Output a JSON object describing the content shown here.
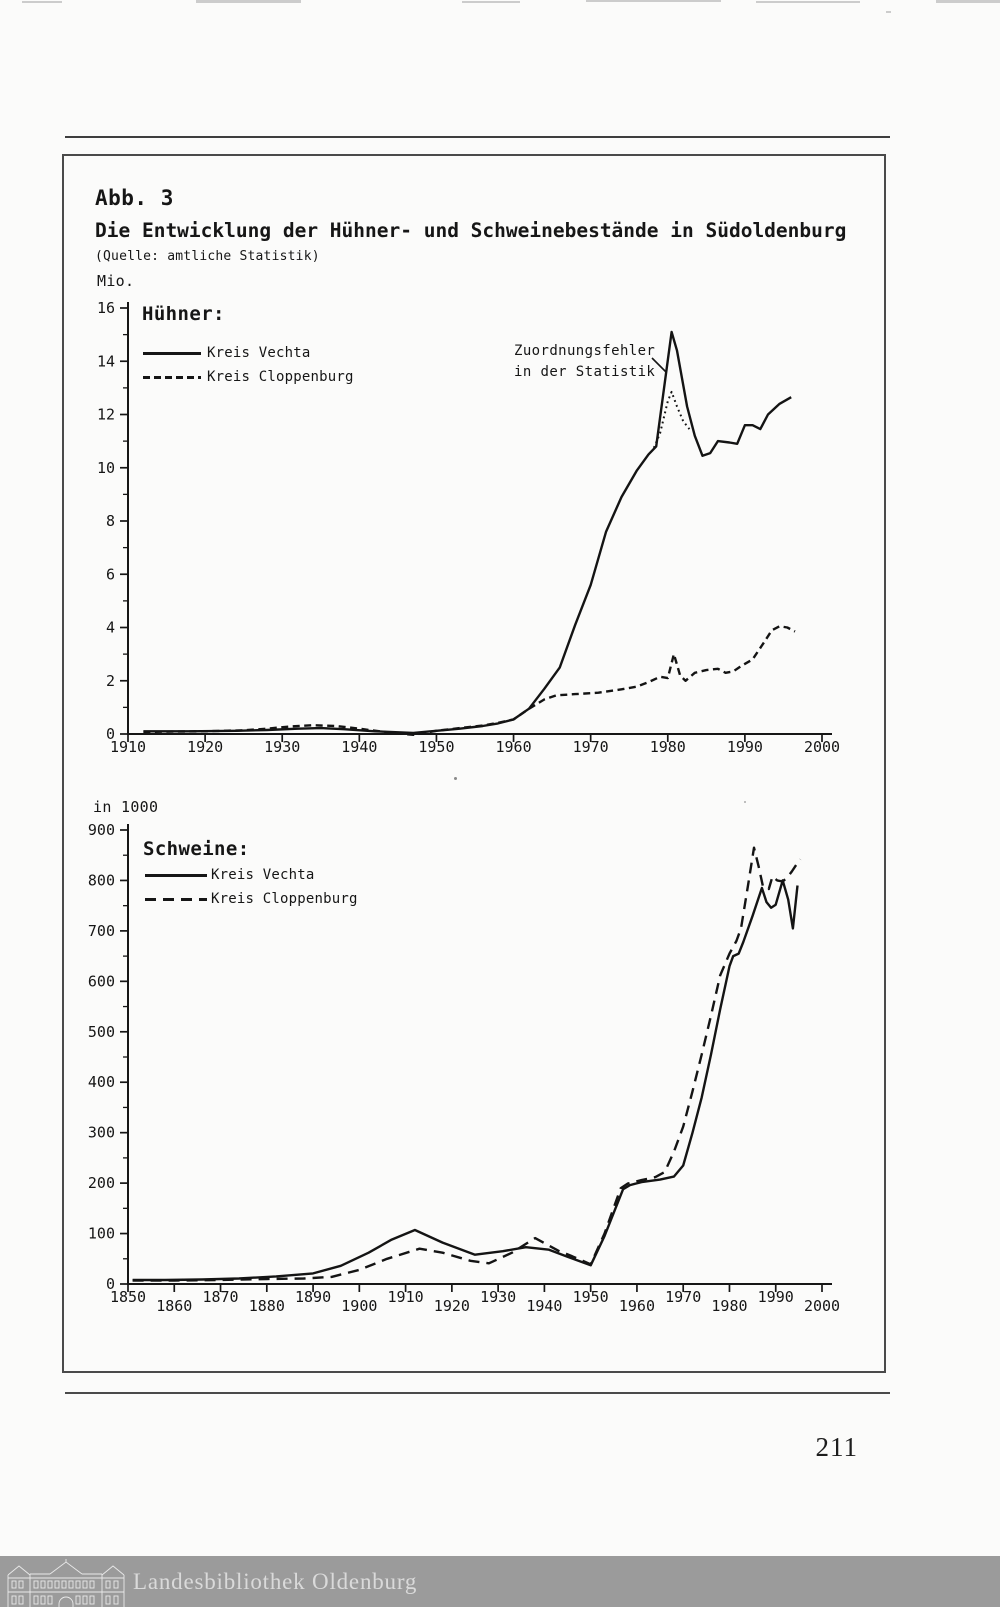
{
  "page": {
    "page_number": "211"
  },
  "figure": {
    "label": "Abb. 3",
    "title": "Die Entwicklung der Hühner- und Schweinebestände in Südoldenburg",
    "source": "(Quelle: amtliche Statistik)"
  },
  "footer": {
    "library": "Landesbibliothek Oldenburg",
    "logo": "library-building-line-art",
    "banner_color": "#9b9b9b"
  },
  "chart_data": [
    {
      "type": "line",
      "title": "Hühner:",
      "unit_label": "Mio.",
      "xlim": [
        1910,
        2000
      ],
      "ylim": [
        0,
        16
      ],
      "x_ticks": [
        1910,
        1920,
        1930,
        1940,
        1950,
        1960,
        1970,
        1980,
        1990,
        2000
      ],
      "y_ticks": [
        0,
        2,
        4,
        6,
        8,
        10,
        12,
        14,
        16
      ],
      "y_minor_step": 1,
      "grid": false,
      "legend_position": "top-left",
      "legend": [
        {
          "label": "Kreis Vechta",
          "style": "solid"
        },
        {
          "label": "Kreis Cloppenburg",
          "style": "dashed"
        }
      ],
      "annotation": {
        "lines": [
          "Zuordnungsfehler",
          "in der Statistik"
        ]
      },
      "series": [
        {
          "name": "Kreis Vechta",
          "style": "solid",
          "points": [
            [
              1912,
              0.1
            ],
            [
              1918,
              0.1
            ],
            [
              1924,
              0.12
            ],
            [
              1928,
              0.15
            ],
            [
              1932,
              0.2
            ],
            [
              1935,
              0.22
            ],
            [
              1938,
              0.18
            ],
            [
              1942,
              0.1
            ],
            [
              1947,
              0.04
            ],
            [
              1950,
              0.12
            ],
            [
              1953,
              0.2
            ],
            [
              1956,
              0.3
            ],
            [
              1958,
              0.4
            ],
            [
              1960,
              0.55
            ],
            [
              1962,
              0.95
            ],
            [
              1964,
              1.7
            ],
            [
              1966,
              2.5
            ],
            [
              1968,
              4.1
            ],
            [
              1970,
              5.6
            ],
            [
              1972,
              7.6
            ],
            [
              1974,
              8.9
            ],
            [
              1976,
              9.9
            ],
            [
              1977.5,
              10.5
            ],
            [
              1978.5,
              10.8
            ],
            [
              1980.5,
              15.1
            ],
            [
              1981.2,
              14.4
            ],
            [
              1982.5,
              12.3
            ],
            [
              1983.5,
              11.2
            ],
            [
              1984.5,
              10.45
            ],
            [
              1985.5,
              10.55
            ],
            [
              1986.5,
              11.0
            ],
            [
              1988,
              10.95
            ],
            [
              1989,
              10.9
            ],
            [
              1990,
              11.6
            ],
            [
              1991,
              11.6
            ],
            [
              1992,
              11.45
            ],
            [
              1993,
              12.0
            ],
            [
              1994.5,
              12.4
            ],
            [
              1996,
              12.65
            ]
          ]
        },
        {
          "name": "Kreis Cloppenburg",
          "style": "dashed",
          "dasharray": "7 4.5",
          "points": [
            [
              1912,
              0.08
            ],
            [
              1920,
              0.1
            ],
            [
              1925,
              0.14
            ],
            [
              1928,
              0.2
            ],
            [
              1931,
              0.28
            ],
            [
              1934,
              0.33
            ],
            [
              1937,
              0.3
            ],
            [
              1940,
              0.2
            ],
            [
              1944,
              0.05
            ],
            [
              1947,
              -0.03
            ],
            [
              1950,
              0.12
            ],
            [
              1953,
              0.22
            ],
            [
              1956,
              0.32
            ],
            [
              1958,
              0.42
            ],
            [
              1960,
              0.55
            ],
            [
              1962,
              0.95
            ],
            [
              1964,
              1.3
            ],
            [
              1965.5,
              1.45
            ],
            [
              1968,
              1.5
            ],
            [
              1971,
              1.55
            ],
            [
              1974,
              1.68
            ],
            [
              1976,
              1.78
            ],
            [
              1977.5,
              1.95
            ],
            [
              1979,
              2.15
            ],
            [
              1980,
              2.1
            ],
            [
              1980.8,
              3.0
            ],
            [
              1981.6,
              2.2
            ],
            [
              1982.3,
              2.0
            ],
            [
              1983.5,
              2.3
            ],
            [
              1985,
              2.4
            ],
            [
              1986.5,
              2.45
            ],
            [
              1987.5,
              2.3
            ],
            [
              1988.5,
              2.35
            ],
            [
              1989.5,
              2.55
            ],
            [
              1991,
              2.8
            ],
            [
              1992.5,
              3.45
            ],
            [
              1993.5,
              3.9
            ],
            [
              1994.5,
              4.05
            ],
            [
              1995.5,
              4.0
            ],
            [
              1996.5,
              3.85
            ]
          ]
        },
        {
          "name": "Zuordnungsfehler in der Statistik",
          "style": "dotted",
          "dasharray": "1.8 3.4",
          "points": [
            [
              1978.2,
              10.75
            ],
            [
              1979,
              11.3
            ],
            [
              1980,
              12.5
            ],
            [
              1980.5,
              12.85
            ],
            [
              1981.2,
              12.3
            ],
            [
              1982,
              11.75
            ],
            [
              1982.8,
              11.45
            ]
          ]
        }
      ]
    },
    {
      "type": "line",
      "title": "Schweine:",
      "unit_label": "in 1000",
      "xlim": [
        1850,
        2000
      ],
      "ylim": [
        0,
        900
      ],
      "x_ticks": [
        1850,
        1860,
        1870,
        1880,
        1890,
        1900,
        1910,
        1920,
        1930,
        1940,
        1950,
        1960,
        1970,
        1980,
        1990,
        2000
      ],
      "x_labels_staggered": true,
      "y_ticks": [
        0,
        100,
        200,
        300,
        400,
        500,
        600,
        700,
        800,
        900
      ],
      "y_minor_step": 50,
      "grid": false,
      "legend_position": "top-left",
      "legend": [
        {
          "label": "Kreis Vechta",
          "style": "solid"
        },
        {
          "label": "Kreis Cloppenburg",
          "style": "dashed"
        }
      ],
      "series": [
        {
          "name": "Kreis Vechta",
          "style": "solid",
          "points": [
            [
              1851,
              8
            ],
            [
              1858,
              8
            ],
            [
              1866,
              9
            ],
            [
              1874,
              11
            ],
            [
              1882,
              15
            ],
            [
              1890,
              21
            ],
            [
              1896,
              36
            ],
            [
              1902,
              62
            ],
            [
              1907,
              88
            ],
            [
              1912,
              107
            ],
            [
              1918,
              82
            ],
            [
              1925,
              58
            ],
            [
              1931,
              65
            ],
            [
              1936,
              73
            ],
            [
              1941,
              68
            ],
            [
              1945,
              54
            ],
            [
              1950,
              37
            ],
            [
              1953,
              95
            ],
            [
              1957,
              188
            ],
            [
              1958.5,
              196
            ],
            [
              1961,
              202
            ],
            [
              1965,
              207
            ],
            [
              1968,
              213
            ],
            [
              1970,
              235
            ],
            [
              1972,
              300
            ],
            [
              1974,
              370
            ],
            [
              1976,
              455
            ],
            [
              1978,
              545
            ],
            [
              1980,
              630
            ],
            [
              1980.8,
              650
            ],
            [
              1982,
              655
            ],
            [
              1983,
              678
            ],
            [
              1985,
              730
            ],
            [
              1987,
              785
            ],
            [
              1988,
              757
            ],
            [
              1989,
              746
            ],
            [
              1990,
              752
            ],
            [
              1991.5,
              800
            ],
            [
              1992.7,
              762
            ],
            [
              1993.7,
              705
            ],
            [
              1994.7,
              790
            ]
          ]
        },
        {
          "name": "Kreis Cloppenburg",
          "style": "dashed",
          "dasharray": "11 7",
          "points": [
            [
              1851,
              7
            ],
            [
              1860,
              7
            ],
            [
              1870,
              8
            ],
            [
              1880,
              10
            ],
            [
              1888,
              11
            ],
            [
              1894,
              14
            ],
            [
              1900,
              28
            ],
            [
              1906,
              50
            ],
            [
              1913,
              70
            ],
            [
              1918,
              62
            ],
            [
              1924,
              46
            ],
            [
              1928,
              41
            ],
            [
              1933,
              62
            ],
            [
              1938,
              91
            ],
            [
              1943,
              66
            ],
            [
              1946,
              55
            ],
            [
              1950,
              39
            ],
            [
              1953,
              100
            ],
            [
              1956.5,
              190
            ],
            [
              1958,
              199
            ],
            [
              1961,
              206
            ],
            [
              1964,
              212
            ],
            [
              1966,
              222
            ],
            [
              1968,
              262
            ],
            [
              1970,
              312
            ],
            [
              1972,
              382
            ],
            [
              1974,
              455
            ],
            [
              1976,
              532
            ],
            [
              1978,
              612
            ],
            [
              1980,
              655
            ],
            [
              1981.5,
              680
            ],
            [
              1982.5,
              705
            ],
            [
              1984,
              790
            ],
            [
              1985.3,
              865
            ],
            [
              1986.3,
              828
            ],
            [
              1987.3,
              786
            ],
            [
              1988.5,
              783
            ],
            [
              1989.3,
              808
            ],
            [
              1990.3,
              800
            ],
            [
              1991.5,
              798
            ],
            [
              1992.5,
              806
            ],
            [
              1993.5,
              818
            ],
            [
              1994.5,
              832
            ],
            [
              1995.3,
              842
            ]
          ]
        }
      ]
    }
  ]
}
